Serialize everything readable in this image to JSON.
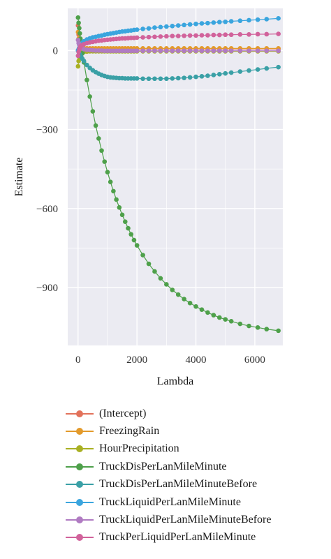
{
  "chart_data": {
    "type": "line",
    "xlabel": "Lambda",
    "ylabel": "Estimate",
    "xlim": [
      -350,
      6950
    ],
    "ylim": [
      -1120,
      160
    ],
    "xticks": [
      {
        "value": 0,
        "label": "0"
      },
      {
        "value": 2000,
        "label": "2000"
      },
      {
        "value": 4000,
        "label": "4000"
      },
      {
        "value": 6000,
        "label": "6000"
      }
    ],
    "yticks": [
      {
        "value": 0,
        "label": "0"
      },
      {
        "value": -300,
        "label": "−300"
      },
      {
        "value": -600,
        "label": "−600"
      },
      {
        "value": -900,
        "label": "−900"
      }
    ],
    "x": [
      0,
      20,
      40,
      60,
      80,
      100,
      150,
      200,
      300,
      400,
      500,
      600,
      700,
      800,
      900,
      1000,
      1100,
      1200,
      1300,
      1400,
      1500,
      1600,
      1700,
      1800,
      1900,
      2000,
      2200,
      2400,
      2600,
      2800,
      3000,
      3200,
      3400,
      3600,
      3800,
      4000,
      4200,
      4400,
      4600,
      4800,
      5000,
      5200,
      5500,
      5800,
      6100,
      6400,
      6800
    ],
    "series": [
      {
        "name": "(Intercept)",
        "color": "#e2725b",
        "values": [
          95,
          60,
          40,
          25,
          18,
          14,
          10,
          8,
          7,
          6,
          6,
          6,
          6,
          6,
          6,
          6,
          6,
          6,
          6,
          6,
          6,
          6,
          6,
          6,
          6,
          6,
          6,
          6,
          6,
          6,
          6,
          6,
          6,
          6,
          6,
          6,
          6,
          6,
          6,
          6,
          6,
          6,
          6,
          6,
          6,
          6,
          6
        ]
      },
      {
        "name": "FreezingRain",
        "color": "#e39a2b",
        "values": [
          70,
          45,
          30,
          20,
          15,
          12,
          10,
          9,
          8,
          8,
          8,
          8,
          8,
          8,
          8,
          8,
          8,
          8,
          8,
          8,
          8,
          8,
          8,
          8,
          8,
          8,
          8,
          8,
          8,
          8,
          8,
          8,
          8,
          8,
          8,
          8,
          8,
          8,
          8,
          8,
          8,
          8,
          8,
          8,
          8,
          8,
          8
        ]
      },
      {
        "name": "HourPrecipitation",
        "color": "#a9b023",
        "values": [
          -60,
          -40,
          -25,
          -15,
          -10,
          -8,
          -6,
          -5,
          -4,
          -3,
          -3,
          -3,
          -3,
          -3,
          -3,
          -3,
          -3,
          -3,
          -3,
          -3,
          -3,
          -3,
          -3,
          -3,
          -3,
          -3,
          -3,
          -3,
          -3,
          -3,
          -3,
          -3,
          -3,
          -3,
          -3,
          -3,
          -3,
          -3,
          -3,
          -3,
          -3,
          -3,
          -3,
          -3,
          -3,
          -3,
          -3
        ]
      },
      {
        "name": "TruckDisPerLanMileMinute",
        "color": "#4ea04a",
        "values": [
          125,
          105,
          85,
          65,
          45,
          30,
          -10,
          -45,
          -112,
          -175,
          -231,
          -285,
          -334,
          -380,
          -422,
          -462,
          -499,
          -534,
          -566,
          -596,
          -624,
          -650,
          -675,
          -698,
          -720,
          -740,
          -777,
          -810,
          -839,
          -865,
          -888,
          -909,
          -927,
          -944,
          -959,
          -972,
          -984,
          -995,
          -1005,
          -1014,
          -1021,
          -1028,
          -1038,
          -1046,
          -1052,
          -1058,
          -1064
        ]
      },
      {
        "name": "TruckDisPerLanMileMinuteBefore",
        "color": "#3aa0a6",
        "values": [
          0,
          -5,
          -10,
          -15,
          -19,
          -23,
          -32,
          -40,
          -55,
          -66,
          -75,
          -82,
          -88,
          -93,
          -97,
          -100,
          -102,
          -103,
          -104,
          -105,
          -105,
          -106,
          -106,
          -106,
          -106,
          -106,
          -107,
          -107,
          -107,
          -107,
          -107,
          -106,
          -105,
          -104,
          -102,
          -100,
          -98,
          -96,
          -93,
          -90,
          -87,
          -84,
          -80,
          -76,
          -72,
          -68,
          -63
        ]
      },
      {
        "name": "TruckLiquidPerLanMileMinute",
        "color": "#3aa5de",
        "values": [
          0,
          5,
          10,
          15,
          19,
          23,
          30,
          35,
          42,
          46,
          50,
          52,
          55,
          57,
          60,
          62,
          64,
          66,
          68,
          70,
          72,
          73,
          75,
          76,
          78,
          79,
          82,
          84,
          87,
          89,
          91,
          93,
          95,
          97,
          99,
          101,
          103,
          104,
          106,
          108,
          109,
          111,
          113,
          115,
          117,
          119,
          122
        ]
      },
      {
        "name": "TruckLiquidPerLanMileMinuteBefore",
        "color": "#b07bc2",
        "values": [
          40,
          28,
          22,
          18,
          15,
          12,
          8,
          5,
          3,
          2,
          1,
          0,
          0,
          0,
          -1,
          -1,
          -1,
          -1,
          -1,
          -1,
          -1,
          -1,
          -1,
          -1,
          -1,
          -1,
          -1,
          -1,
          -1,
          -1,
          -1,
          -1,
          -1,
          -1,
          -1,
          -1,
          -1,
          -1,
          -1,
          -1,
          -1,
          -1,
          -1,
          -1,
          -1,
          -1,
          -1
        ]
      },
      {
        "name": "TruckPerLiquidPerLanMileMinute",
        "color": "#d1629b",
        "values": [
          -20,
          -5,
          5,
          10,
          14,
          17,
          21,
          24,
          28,
          31,
          33,
          35,
          37,
          38,
          40,
          41,
          42,
          43,
          44,
          45,
          46,
          46,
          47,
          48,
          48,
          49,
          50,
          51,
          52,
          53,
          54,
          55,
          55,
          56,
          57,
          57,
          58,
          58,
          59,
          59,
          60,
          60,
          61,
          61,
          62,
          62,
          63
        ]
      }
    ],
    "grid": true,
    "legend_placement": "bottom"
  }
}
